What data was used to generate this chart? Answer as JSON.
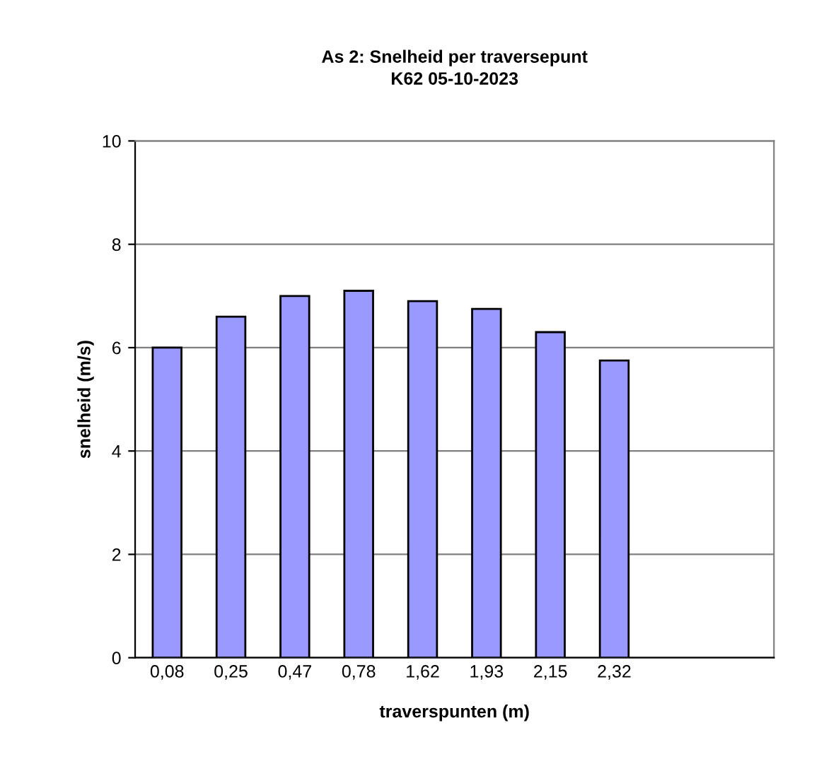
{
  "chart_data": {
    "type": "bar",
    "title": "As 2: Snelheid per traversepunt",
    "subtitle": "K62 05-10-2023",
    "xlabel": "traverspunten (m)",
    "ylabel": "snelheid (m/s)",
    "categories": [
      "0,08",
      "0,25",
      "0,47",
      "0,78",
      "1,62",
      "1,93",
      "2,15",
      "2,32",
      null,
      null
    ],
    "values": [
      6.0,
      6.6,
      7.0,
      7.1,
      6.9,
      6.75,
      6.3,
      5.75,
      null,
      null
    ],
    "color": "#9999ff",
    "ylim": [
      0,
      10
    ],
    "yticks": [
      0,
      2,
      4,
      6,
      8,
      10
    ],
    "grid": "y",
    "legend": false
  }
}
